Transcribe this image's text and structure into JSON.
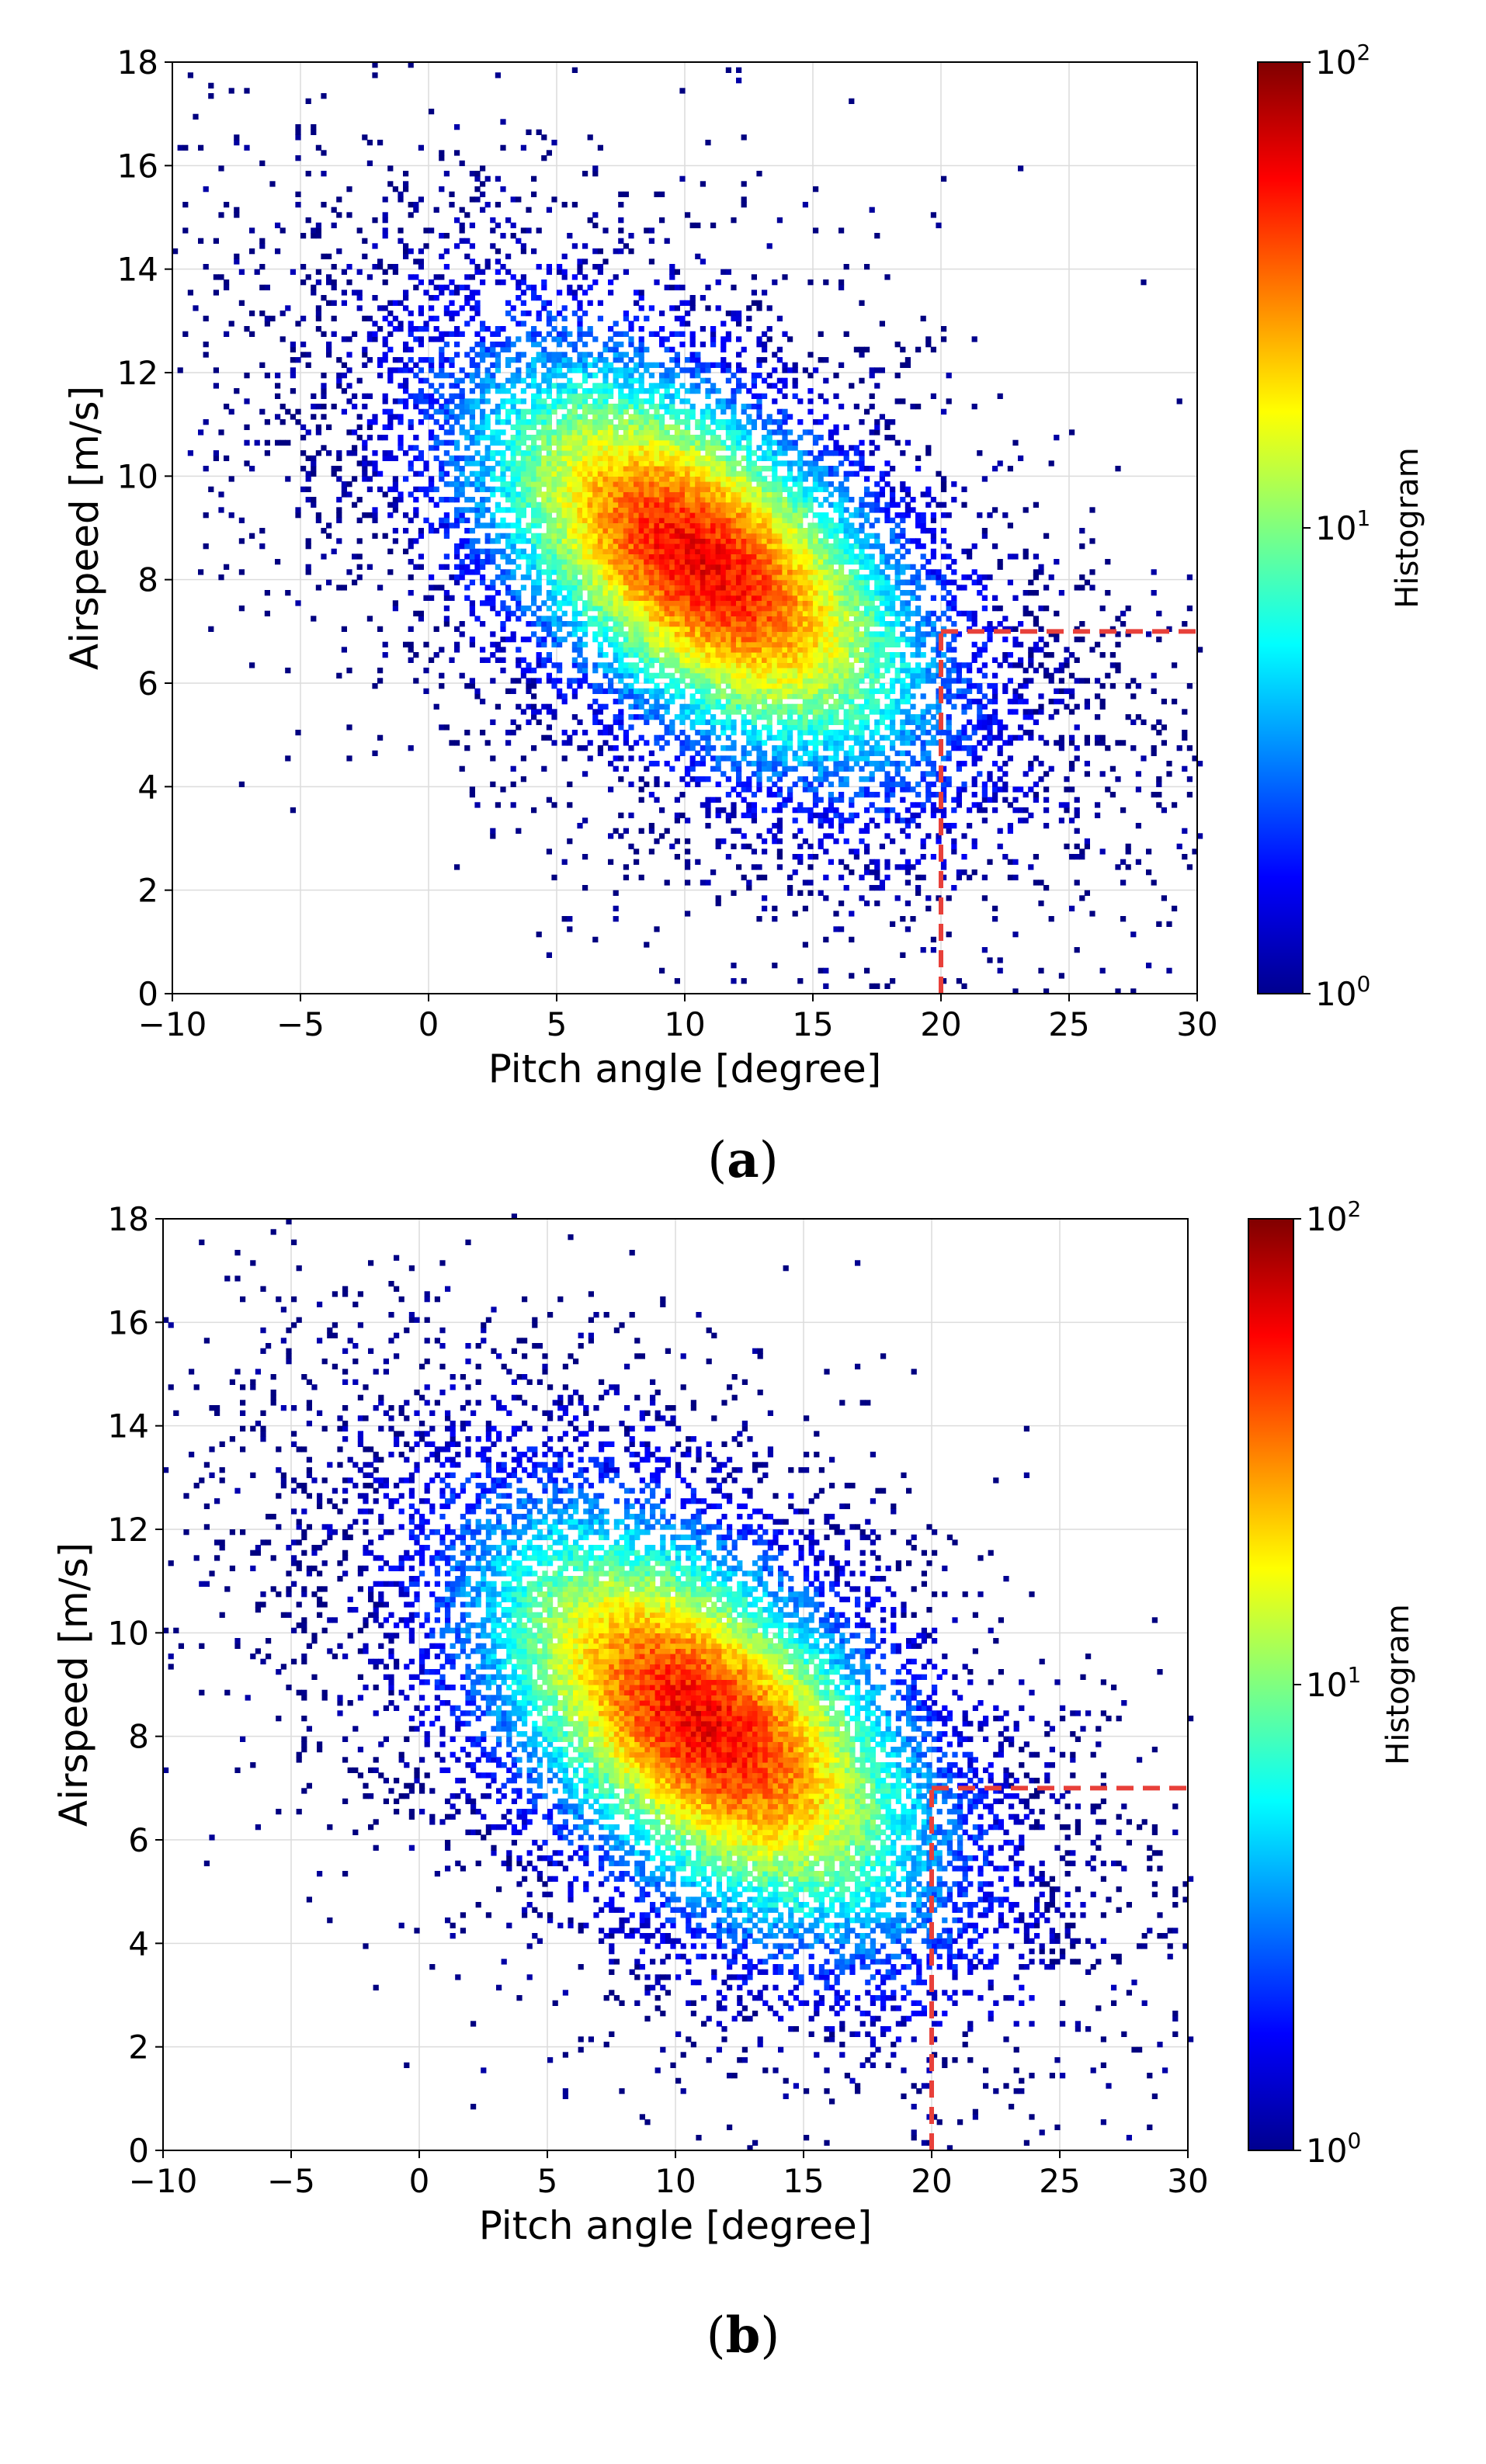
{
  "chart_data": [
    {
      "type": "heatmap",
      "panel_label": "a",
      "title": "",
      "xlabel": "Pitch angle [degree]",
      "ylabel": "Airspeed [m/s]",
      "xlim": [
        -10,
        30
      ],
      "ylim": [
        0,
        18
      ],
      "x_ticks": [
        "−10",
        "−5",
        "0",
        "5",
        "10",
        "15",
        "20",
        "25",
        "30"
      ],
      "y_ticks": [
        "0",
        "2",
        "4",
        "6",
        "8",
        "10",
        "12",
        "14",
        "16",
        "18"
      ],
      "grid": true,
      "density": {
        "peak_center": [
          10.5,
          8.3
        ],
        "spread": [
          6,
          2.2
        ],
        "correlation_slope": -0.25,
        "extent_x": [
          -10,
          30
        ],
        "extent_y": [
          0,
          18
        ]
      },
      "threshold_lines": {
        "x": 20,
        "y": 7,
        "color": "#e8403a"
      },
      "colorbar": {
        "label": "Histogram",
        "scale": "log",
        "min": 1,
        "max": 100,
        "tick_values": [
          1,
          10,
          100
        ],
        "tick_labels": [
          "10",
          "10",
          "10"
        ],
        "tick_exponents": [
          "0",
          "1",
          "2"
        ]
      }
    },
    {
      "type": "heatmap",
      "panel_label": "b",
      "title": "",
      "xlabel": "Pitch angle [degree]",
      "ylabel": "Airspeed [m/s]",
      "xlim": [
        -10,
        30
      ],
      "ylim": [
        0,
        18
      ],
      "x_ticks": [
        "−10",
        "−5",
        "0",
        "5",
        "10",
        "15",
        "20",
        "25",
        "30"
      ],
      "y_ticks": [
        "0",
        "2",
        "4",
        "6",
        "8",
        "10",
        "12",
        "14",
        "16",
        "18"
      ],
      "grid": true,
      "density": {
        "peak_center": [
          11,
          8.2
        ],
        "spread": [
          6,
          2.3
        ],
        "correlation_slope": -0.25,
        "extent_x": [
          -10,
          30
        ],
        "extent_y": [
          0,
          18
        ]
      },
      "threshold_lines": {
        "x": 20,
        "y": 7,
        "color": "#e8403a"
      },
      "colorbar": {
        "label": "Histogram",
        "scale": "log",
        "min": 1,
        "max": 100,
        "tick_values": [
          1,
          10,
          100
        ],
        "tick_labels": [
          "10",
          "10",
          "10"
        ],
        "tick_exponents": [
          "0",
          "1",
          "2"
        ]
      }
    }
  ],
  "captions": [
    "a",
    "b"
  ]
}
